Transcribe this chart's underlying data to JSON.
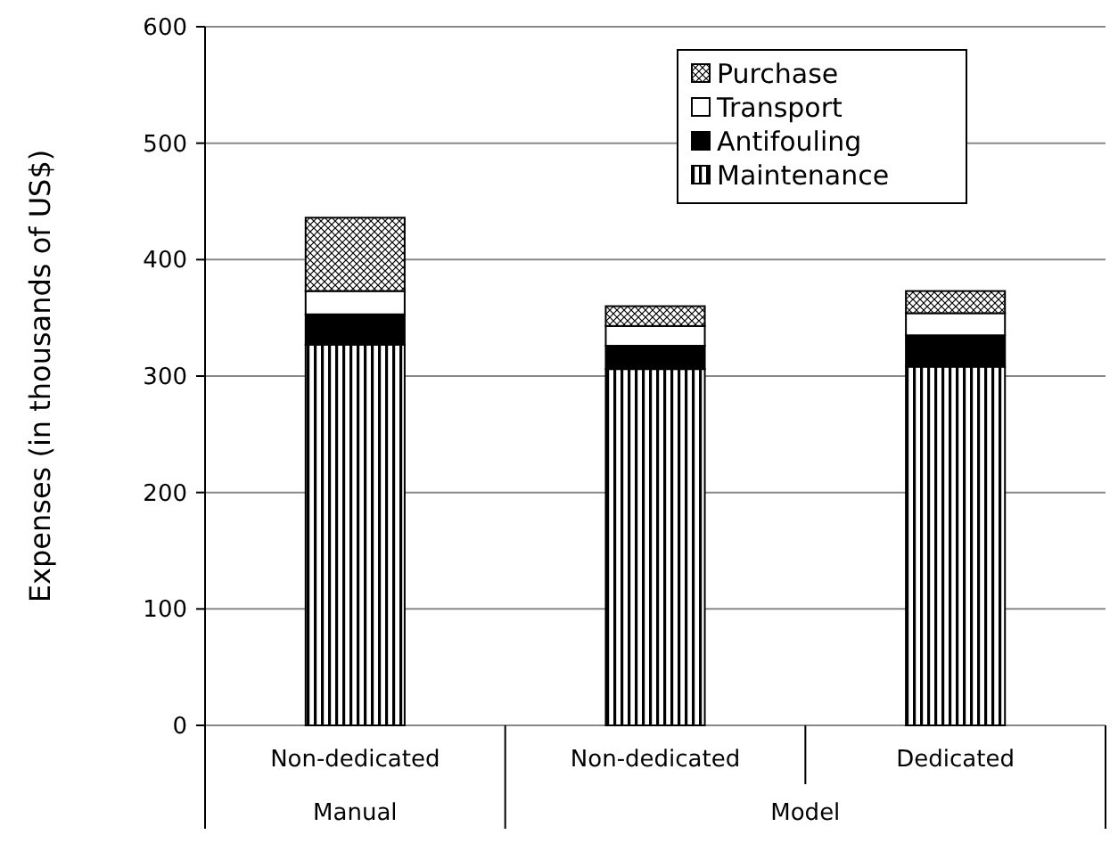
{
  "chart_data": {
    "type": "bar",
    "stacked": true,
    "ylabel": "Expenses (in thousands of US$)",
    "categories": [
      "Non-dedicated",
      "Non-dedicated",
      "Dedicated"
    ],
    "annotations": [
      "Manual",
      "Model"
    ],
    "series": [
      {
        "name": "Maintenance",
        "color": "#000000",
        "values": [
          327,
          306,
          308
        ]
      },
      {
        "name": "Antifouling",
        "color": "#000000",
        "values": [
          26,
          20,
          27
        ]
      },
      {
        "name": "Transport",
        "color": "#ffffff",
        "values": [
          20,
          17,
          19
        ]
      },
      {
        "name": "Purchase",
        "color": "#000000",
        "values": [
          63,
          17,
          19
        ]
      }
    ],
    "ylim": [
      0,
      600
    ],
    "yticks": [
      0,
      100,
      200,
      300,
      400,
      500,
      600
    ],
    "grid": "y",
    "legend": "top right"
  }
}
